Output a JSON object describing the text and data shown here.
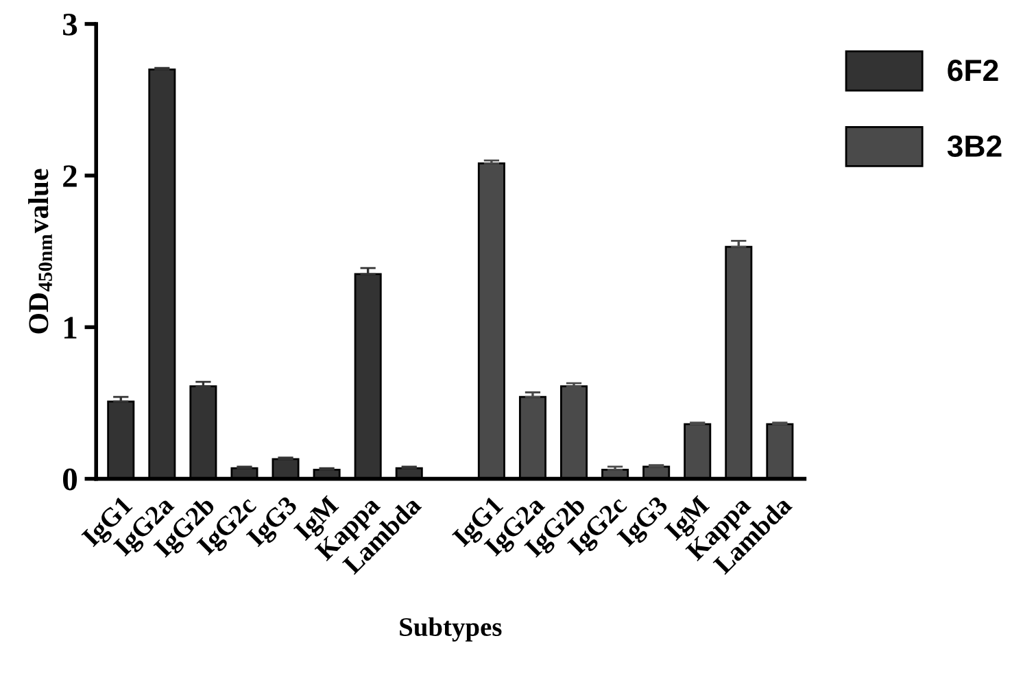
{
  "chart_data": {
    "type": "bar",
    "xlabel": "Subtypes",
    "ylabel": "OD$_{450nm}$value",
    "categories": [
      "IgG1",
      "IgG2a",
      "IgG2b",
      "IgG2c",
      "IgG3",
      "IgM",
      "Kappa",
      "Lambda",
      null,
      "IgG1",
      "IgG2a",
      "IgG2b",
      "IgG2c",
      "IgG3",
      "IgM",
      "Kappa",
      "Lambda"
    ],
    "series": [
      {
        "name": "6F2",
        "color": "#333333",
        "values": [
          0.51,
          2.7,
          0.61,
          0.07,
          0.13,
          0.06,
          1.35,
          0.07,
          null,
          null,
          null,
          null,
          null,
          null,
          null,
          null,
          null
        ],
        "errors": [
          0.03,
          0.01,
          0.03,
          0.01,
          0.01,
          0.01,
          0.04,
          0.01,
          null,
          null,
          null,
          null,
          null,
          null,
          null,
          null,
          null
        ]
      },
      {
        "name": "3B2",
        "color": "#4a4a4a",
        "values": [
          null,
          null,
          null,
          null,
          null,
          null,
          null,
          null,
          null,
          2.08,
          0.54,
          0.61,
          0.06,
          0.08,
          0.36,
          1.53,
          0.36
        ],
        "errors": [
          null,
          null,
          null,
          null,
          null,
          null,
          null,
          null,
          null,
          0.02,
          0.03,
          0.02,
          0.02,
          0.01,
          0.01,
          0.04,
          0.01
        ]
      }
    ],
    "ylim": [
      0,
      3
    ],
    "yticks": [
      0,
      1,
      2,
      3
    ],
    "grid": false,
    "legend": "top right"
  }
}
